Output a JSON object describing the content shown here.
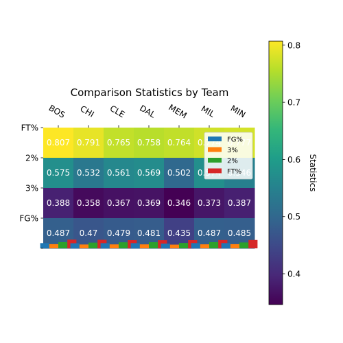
{
  "chart_data": {
    "type": "heatmap",
    "title": "Comparison Statistics by Team",
    "teams": [
      "BOS",
      "CHI",
      "CLE",
      "DAL",
      "MEM",
      "MIL",
      "MIN"
    ],
    "rows": [
      "FG%",
      "3%",
      "2%",
      "FT%"
    ],
    "values": {
      "FG%": [
        0.487,
        0.47,
        0.479,
        0.481,
        0.435,
        0.487,
        0.485
      ],
      "3%": [
        0.388,
        0.358,
        0.367,
        0.369,
        0.346,
        0.373,
        0.387
      ],
      "2%": [
        0.575,
        0.532,
        0.561,
        0.569,
        0.502,
        0.574,
        0.546
      ],
      "FT%": [
        0.807,
        0.791,
        0.765,
        0.758,
        0.764,
        0.774,
        0.777
      ]
    },
    "labels": {
      "FG%": [
        "0.487",
        "0.47",
        "0.479",
        "0.481",
        "0.435",
        "0.487",
        "0.485"
      ],
      "3%": [
        "0.388",
        "0.358",
        "0.367",
        "0.369",
        "0.346",
        "0.373",
        "0.387"
      ],
      "2%": [
        "0.575",
        "0.532",
        "0.561",
        "0.569",
        "0.502",
        "0.574",
        "0.546"
      ],
      "FT%": [
        "0.807",
        "0.791",
        "0.765",
        "0.758",
        "0.764",
        "0.774",
        "0.777"
      ]
    },
    "colorbar": {
      "label": "Statistics",
      "vmin": 0.346,
      "vmax": 0.807,
      "ticks": [
        0.4,
        0.5,
        0.6,
        0.7,
        0.8
      ],
      "tick_labels": [
        "0.4",
        "0.5",
        "0.6",
        "0.7",
        "0.8"
      ]
    },
    "overlay_bars": {
      "type": "bar",
      "series": [
        "FG%",
        "3%",
        "2%",
        "FT%"
      ],
      "colors": [
        "#1f77b4",
        "#ff7f0e",
        "#2ca02c",
        "#d62728"
      ],
      "ylim": [
        0,
        2.8
      ]
    },
    "legend": {
      "entries": [
        "FG%",
        "3%",
        "2%",
        "FT%"
      ],
      "placement": "upper-right"
    },
    "colormap": [
      "#440154",
      "#482878",
      "#3e4989",
      "#31688e",
      "#26828e",
      "#1f9e89",
      "#35b779",
      "#6ece58",
      "#b5de2b",
      "#fde725"
    ]
  }
}
